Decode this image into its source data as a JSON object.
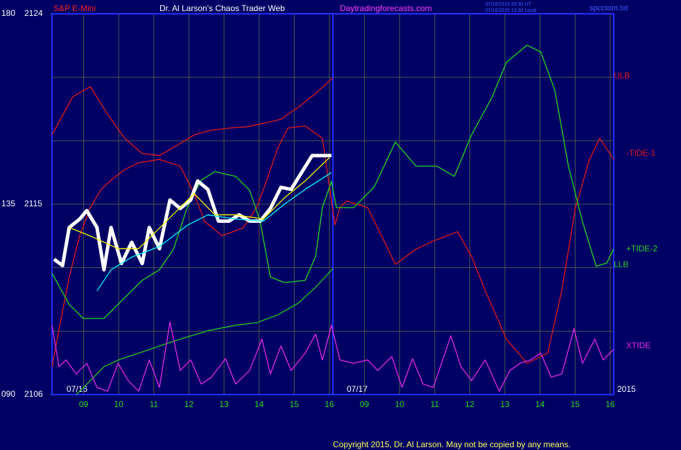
{
  "chart_data": {
    "type": "line",
    "title": "Dr. Al Larson's Chaos Trader Web",
    "instrument": "S&P E-Mini",
    "website": "Daytradingforecasts.com",
    "timestamps": [
      "07/16/2015 20:30 UT",
      "07/16/2015 13:30 Local"
    ],
    "file_name": "spcctom.txt",
    "copyright": "Copyright 2015, Dr. Al Larson. May not be copied by any means.",
    "dates": [
      "07/16",
      "07/17"
    ],
    "year": "2015",
    "xlim": [
      0.1,
      16.1
    ],
    "xticks": [
      {
        "value": 1,
        "label": "09"
      },
      {
        "value": 2,
        "label": "10"
      },
      {
        "value": 3,
        "label": "11"
      },
      {
        "value": 4,
        "label": "12"
      },
      {
        "value": 5,
        "label": "13"
      },
      {
        "value": 6,
        "label": "14"
      },
      {
        "value": 7,
        "label": "15"
      },
      {
        "value": 8,
        "label": "16"
      },
      {
        "value": 9,
        "label": "09"
      },
      {
        "value": 10,
        "label": "10"
      },
      {
        "value": 11,
        "label": "11"
      },
      {
        "value": 12,
        "label": "12"
      },
      {
        "value": 13,
        "label": "13"
      },
      {
        "value": 14,
        "label": "14"
      },
      {
        "value": 15,
        "label": "15"
      },
      {
        "value": 16,
        "label": "16"
      }
    ],
    "ylim": [
      2106,
      2124
    ],
    "yticks": [
      2106,
      2115,
      2124
    ],
    "y2lim": [
      90,
      180
    ],
    "y2ticks": [
      {
        "value": 90,
        "label": "090"
      },
      135,
      180
    ],
    "grid": true,
    "series": [
      {
        "name": "ULB",
        "color": "#e81818",
        "axis": "y2",
        "x": [
          0.1,
          0.69,
          1.19,
          1.68,
          2.17,
          2.67,
          3.16,
          3.66,
          4.15,
          4.64,
          5.14,
          5.63,
          6.12,
          6.62,
          7.11,
          7.61,
          8.1
        ],
        "values": [
          151.4,
          160.4,
          162.8,
          156.3,
          150.6,
          147.0,
          146.5,
          148.9,
          151.4,
          152.5,
          153.0,
          153.3,
          154.1,
          155.1,
          157.9,
          161.2,
          164.9
        ]
      },
      {
        "name": "-TIDE-1",
        "color": "#e81818",
        "axis": "y2",
        "x": [
          0.1,
          0.4,
          0.59,
          0.89,
          1.19,
          1.48,
          1.78,
          2.17,
          2.57,
          3.16,
          3.75,
          4.15,
          4.45,
          4.94,
          5.53,
          5.93,
          6.22,
          6.52,
          6.82,
          7.31,
          7.8,
          8.06,
          8.16,
          8.3,
          8.49,
          9.09,
          9.48,
          9.88,
          10.47,
          10.96,
          11.65,
          12.05,
          12.44,
          13.04,
          13.63,
          14.22,
          14.62,
          15.01,
          15.41,
          15.7,
          16.1
        ],
        "values": [
          96.6,
          109.7,
          117.8,
          127.6,
          134.2,
          138.3,
          140.7,
          143.2,
          144.8,
          145.6,
          144.0,
          137.5,
          130.9,
          127.6,
          129.3,
          134.2,
          140.7,
          148.1,
          153.0,
          153.5,
          150.6,
          135.8,
          130.1,
          134.2,
          135.8,
          134.2,
          127.6,
          120.8,
          124.4,
          126.3,
          128.5,
          122.7,
          114.6,
          103.1,
          97.4,
          99.8,
          114.6,
          134.2,
          145.6,
          150.6,
          145.6
        ]
      },
      {
        "name": "+TIDE-2",
        "color": "#22dd22",
        "axis": "y2",
        "x": [
          0.1,
          0.59,
          0.99,
          1.58,
          2.17,
          2.67,
          3.16,
          3.56,
          3.95,
          4.35,
          4.74,
          5.33,
          5.73,
          6.03,
          6.32,
          6.72,
          7.31,
          7.61,
          7.8,
          8.06,
          8.2,
          8.69,
          9.28,
          9.88,
          10.47,
          11.06,
          11.56,
          12.05,
          12.64,
          13.04,
          13.63,
          14.02,
          14.42,
          14.81,
          15.21,
          15.6,
          15.9,
          16.1
        ],
        "values": [
          118.7,
          111.3,
          108.0,
          108.0,
          112.9,
          117.0,
          119.5,
          124.4,
          134.2,
          140.7,
          142.7,
          141.6,
          138.3,
          130.9,
          117.8,
          116.5,
          117.0,
          122.7,
          134.2,
          140.4,
          134.2,
          134.2,
          139.1,
          149.7,
          144.0,
          144.0,
          141.6,
          151.4,
          160.4,
          168.5,
          172.6,
          171.0,
          162.0,
          144.0,
          130.9,
          120.3,
          121.1,
          124.4
        ]
      },
      {
        "name": "LLB",
        "color": "#22cc22",
        "axis": "y2",
        "x": [
          0.79,
          1.19,
          1.58,
          2.08,
          2.57,
          3.16,
          3.75,
          4.54,
          5.33,
          5.93,
          6.52,
          7.11,
          7.61,
          8.1
        ],
        "values": [
          90.0,
          93.3,
          96.6,
          98.5,
          99.8,
          101.5,
          103.1,
          105.1,
          106.4,
          107.0,
          108.8,
          111.6,
          115.4,
          119.8
        ]
      },
      {
        "name": "XTIDE",
        "color": "#e828e8",
        "axis": "y2",
        "x": [
          0.1,
          0.3,
          0.5,
          0.79,
          1.09,
          1.38,
          1.68,
          1.98,
          2.27,
          2.57,
          2.87,
          3.16,
          3.46,
          3.75,
          4.05,
          4.35,
          4.64,
          5.04,
          5.33,
          5.73,
          6.08,
          6.32,
          6.62,
          6.91,
          7.31,
          7.61,
          7.8,
          8.06,
          8.3,
          8.69,
          9.09,
          9.38,
          9.78,
          10.07,
          10.37,
          10.67,
          10.96,
          11.46,
          11.75,
          12.05,
          12.44,
          12.84,
          13.14,
          13.43,
          13.73,
          14.02,
          14.32,
          14.62,
          14.97,
          15.21,
          15.56,
          15.8,
          16.1
        ],
        "values": [
          106.4,
          96.6,
          98.2,
          94.9,
          97.4,
          91.7,
          90.8,
          97.4,
          93.3,
          90.8,
          98.2,
          91.7,
          107.2,
          95.7,
          98.2,
          92.5,
          94.1,
          98.5,
          92.5,
          95.7,
          103.1,
          94.9,
          101.5,
          95.7,
          99.8,
          104.3,
          98.2,
          106.4,
          98.2,
          97.4,
          98.2,
          95.7,
          99.0,
          91.7,
          98.5,
          92.5,
          91.7,
          103.9,
          96.6,
          93.3,
          98.2,
          90.8,
          95.7,
          97.4,
          98.2,
          99.8,
          94.1,
          94.9,
          105.6,
          97.4,
          103.1,
          98.2,
          100.7
        ]
      },
      {
        "color": "#ffffff",
        "x": [
          0.16,
          0.4,
          0.59,
          0.89,
          1.09,
          1.38,
          1.58,
          1.78,
          2.08,
          2.37,
          2.67,
          2.87,
          3.16,
          3.46,
          3.75,
          4.05,
          4.25,
          4.54,
          4.84,
          5.14,
          5.43,
          5.73,
          6.03,
          6.32,
          6.62,
          6.91,
          7.21,
          7.51,
          7.8,
          8.06
        ],
        "values": [
          2112.4,
          2112.1,
          2113.9,
          2114.3,
          2114.7,
          2113.9,
          2111.9,
          2113.9,
          2112.2,
          2113.2,
          2112.2,
          2113.9,
          2112.9,
          2115.2,
          2114.8,
          2115.2,
          2116.1,
          2115.7,
          2114.2,
          2114.2,
          2114.5,
          2114.2,
          2114.2,
          2114.8,
          2115.8,
          2115.7,
          2116.5,
          2117.3,
          2117.3,
          2117.3
        ]
      },
      {
        "color": "#ffff00",
        "x": [
          0.59,
          1.19,
          1.98,
          2.57,
          3.36,
          4.15,
          4.74,
          5.33,
          6.12,
          6.72,
          7.31,
          8.0
        ],
        "values": [
          2113.9,
          2113.5,
          2112.9,
          2112.9,
          2114.2,
          2115.5,
          2114.5,
          2114.5,
          2114.3,
          2115.3,
          2116.1,
          2117.2
        ]
      },
      {
        "color": "#00ffff",
        "x": [
          1.38,
          1.78,
          2.37,
          3.16,
          3.95,
          4.54,
          5.33,
          6.12,
          6.72,
          7.31,
          8.06
        ],
        "values": [
          2110.9,
          2111.9,
          2112.5,
          2113.0,
          2114.0,
          2114.5,
          2114.3,
          2114.2,
          2115.0,
          2115.7,
          2116.5
        ]
      }
    ]
  }
}
